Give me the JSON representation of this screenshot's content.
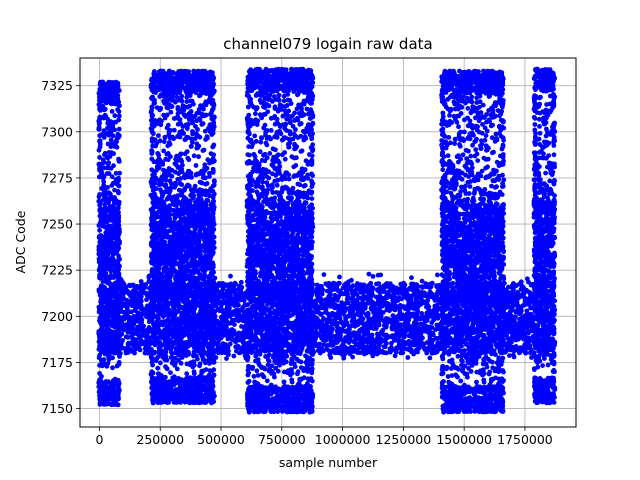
{
  "chart_data": {
    "type": "scatter",
    "title": "channel079 logain raw data",
    "xlabel": "sample number",
    "ylabel": "ADC Code",
    "xlim": [
      -80000,
      1960000
    ],
    "ylim": [
      7140,
      7340
    ],
    "xticks": [
      0,
      250000,
      500000,
      750000,
      1000000,
      1250000,
      1500000,
      1750000
    ],
    "xtick_labels": [
      "0",
      "250000",
      "500000",
      "750000",
      "1000000",
      "1250000",
      "1500000",
      "1750000"
    ],
    "yticks": [
      7150,
      7175,
      7200,
      7225,
      7250,
      7275,
      7300,
      7325
    ],
    "ytick_labels": [
      "7150",
      "7175",
      "7200",
      "7225",
      "7250",
      "7275",
      "7300",
      "7325"
    ],
    "grid": true,
    "marker_color": "#0000ff",
    "baseline": {
      "x_range": [
        0,
        1870000
      ],
      "y_min": 7180,
      "y_max": 7218
    },
    "wide_segments": [
      {
        "x_range": [
          0,
          80000
        ],
        "y_min": 7152,
        "y_max": 7327
      },
      {
        "x_range": [
          215000,
          470000
        ],
        "y_min": 7153,
        "y_max": 7333
      },
      {
        "x_range": [
          610000,
          875000
        ],
        "y_min": 7148,
        "y_max": 7334
      },
      {
        "x_range": [
          1410000,
          1660000
        ],
        "y_min": 7148,
        "y_max": 7333
      },
      {
        "x_range": [
          1790000,
          1870000
        ],
        "y_min": 7153,
        "y_max": 7334
      }
    ]
  }
}
